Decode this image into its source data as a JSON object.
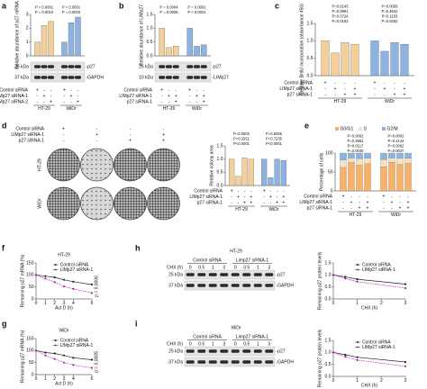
{
  "panels": [
    {
      "label": "a",
      "chart": {
        "type": "bar",
        "y_label": "Relative abundance of p27 mRNA",
        "ylim": [
          0,
          3
        ],
        "yticks": [
          0,
          1,
          2,
          3
        ],
        "groups": [
          {
            "name": "HT-29",
            "color": "#f5cf9a",
            "values": [
              1,
              2.2,
              2.5
            ]
          },
          {
            "name": "WiDr",
            "color": "#8db3e2",
            "values": [
              1,
              2.4,
              2.8
            ]
          }
        ],
        "p_values": [
          "P = 0.0010",
          "P = 0.0001",
          "P = 0.0003",
          "P < 0.0001"
        ]
      },
      "blot": {
        "markers": [
          "25 kDa",
          "37 kDa"
        ],
        "bands": [
          "-p27",
          "-GAPDH"
        ]
      },
      "table": {
        "rows": [
          {
            "label": "Control siRNA",
            "signs": [
              "+",
              "-",
              "-",
              "+",
              "-",
              "-"
            ]
          },
          {
            "label": "LIMp27 siRNA-1",
            "signs": [
              "-",
              "+",
              "-",
              "-",
              "+",
              "-"
            ]
          },
          {
            "label": "LIMp27 siRNA-2",
            "signs": [
              "-",
              "-",
              "+",
              "-",
              "-",
              "+"
            ]
          }
        ]
      }
    },
    {
      "label": "b",
      "chart": {
        "type": "bar",
        "y_label": "Relative abundance of LIMp27",
        "ylim": [
          0,
          1.5
        ],
        "yticks": [
          {
            "value": 0,
            "label": "0.0"
          },
          {
            "value": 0.5,
            "label": "0.5"
          },
          {
            "value": 1,
            "label": "1.0"
          },
          {
            "value": 1.5,
            "label": "1.5"
          }
        ],
        "groups": [
          {
            "name": "HT-29",
            "color": "#f5cf9a",
            "values": [
              1,
              0.3,
              0.35
            ]
          },
          {
            "name": "WiDr",
            "color": "#8db3e2",
            "values": [
              1,
              0.35,
              0.4
            ]
          }
        ],
        "p_values": [
          "P = 0.0005",
          "P = 0.0004",
          "P < 0.0001",
          "P = 0.0002"
        ]
      },
      "blot": {
        "markers": [
          "25 kDa",
          "10 kDa"
        ],
        "bands": [
          "-p27",
          "-LIMp27"
        ]
      },
      "table": {
        "rows": [
          {
            "label": "Control siRNA",
            "signs": [
              "+",
              "-",
              "-",
              "+",
              "-",
              "-"
            ]
          },
          {
            "label": "LIMp27 siRNA-1",
            "signs": [
              "-",
              "+",
              "+",
              "-",
              "+",
              "+"
            ]
          },
          {
            "label": "p27 siRNA-1",
            "signs": [
              "-",
              "-",
              "+",
              "-",
              "-",
              "+"
            ]
          }
        ]
      }
    },
    {
      "label": "c",
      "chart": {
        "type": "bar",
        "y_label": "Relative BrdU incorporation (absorbance 450)",
        "ylim": [
          0,
          1.5
        ],
        "yticks": [
          {
            "value": 0,
            "label": "0.0"
          },
          {
            "value": 0.5,
            "label": "0.5"
          },
          {
            "value": 1,
            "label": "1.0"
          },
          {
            "value": 1.5,
            "label": "1.5"
          }
        ],
        "groups": [
          {
            "name": "HT-29",
            "color": "#f5cf9a",
            "values": [
              1,
              0.65,
              0.95,
              0.9
            ]
          },
          {
            "name": "WiDr",
            "color": "#8db3e2",
            "values": [
              1,
              0.7,
              0.95,
              0.9
            ]
          }
        ],
        "p_values": [
          "P=0.0193",
          "P=0.0724",
          "P=0.0991",
          "P=0.0143",
          "P=0.0252",
          "P=0.1103",
          "P=0.4642",
          "P=0.0059"
        ]
      },
      "table": {
        "rows": [
          {
            "label": "Control siRNA",
            "signs": [
              "+",
              "-",
              "-",
              "-",
              "+",
              "-",
              "-",
              "-"
            ]
          },
          {
            "label": "LIMp27 siRNA-1",
            "signs": [
              "-",
              "+",
              "-",
              "+",
              "-",
              "+",
              "-",
              "+"
            ]
          },
          {
            "label": "p27 siRNA-1",
            "signs": [
              "-",
              "-",
              "+",
              "+",
              "-",
              "-",
              "+",
              "+"
            ]
          }
        ]
      }
    },
    {
      "label": "d",
      "dishes": {
        "rows": [
          "HT-29",
          "WiDr"
        ],
        "table": [
          {
            "label": "Control siRNA",
            "signs": [
              "+",
              "-",
              "-",
              "-"
            ]
          },
          {
            "label": "LIMp27 siRNA-1",
            "signs": [
              "-",
              "+",
              "-",
              "+"
            ]
          },
          {
            "label": "p27 siRNA-1",
            "signs": [
              "-",
              "-",
              "+",
              "+"
            ]
          }
        ]
      },
      "chart": {
        "type": "bar",
        "y_label": "Relative colony area",
        "ylim": [
          0,
          1.5
        ],
        "yticks": [
          {
            "value": 0,
            "label": "0.0"
          },
          {
            "value": 0.5,
            "label": "0.5"
          },
          {
            "value": 1,
            "label": "1.0"
          },
          {
            "value": 1.5,
            "label": "1.5"
          }
        ],
        "groups": [
          {
            "name": "HT-29",
            "color": "#f5cf9a",
            "values": [
              1,
              0.35,
              1.05,
              1
            ]
          },
          {
            "name": "WiDr",
            "color": "#8db3e2",
            "values": [
              1,
              0.3,
              1,
              0.95
            ]
          }
        ],
        "p_values": [
          "P<0.0001",
          "P=0.3251",
          "P=0.0502",
          "P<0.0001",
          "P=0.7235",
          "P=0.8266"
        ]
      },
      "table": {
        "rows": [
          {
            "label": "Control siRNA",
            "signs": [
              "+",
              "-",
              "-",
              "-",
              "+",
              "-",
              "-",
              "-"
            ]
          },
          {
            "label": "LIMp27 siRNA-1",
            "signs": [
              "-",
              "+",
              "-",
              "+",
              "-",
              "+",
              "-",
              "+"
            ]
          },
          {
            "label": "p27 siRNA-1",
            "signs": [
              "-",
              "-",
              "+",
              "+",
              "-",
              "-",
              "+",
              "+"
            ]
          }
        ]
      }
    },
    {
      "label": "e",
      "chart": {
        "type": "stacked_bar",
        "y_label": "Percentage of cells",
        "ylim": [
          0,
          100
        ],
        "yticks": [
          0,
          50,
          100
        ],
        "groups": [
          "HT-29",
          "WiDr"
        ],
        "series": [
          {
            "name": "G0/G1",
            "color": "#f6b26b",
            "values": [
              62,
              75,
              68,
              72,
              64,
              76,
              70,
              73
            ]
          },
          {
            "name": "S",
            "color": "#f3e3c0",
            "values": [
              20,
              12,
              17,
              14,
              19,
              11,
              16,
              13
            ]
          },
          {
            "name": "G2/M",
            "color": "#8db3e2",
            "values": [
              18,
              13,
              15,
              14,
              17,
              13,
              14,
              14
            ]
          }
        ],
        "p_values": [
          "P=0.0030",
          "P=0.0117",
          "P=0.3961",
          "P=0.0002",
          "P=0.0037",
          "P=0.0062",
          "P=0.4144",
          "P=0.0002"
        ]
      },
      "table": {
        "rows": [
          {
            "label": "Control siRNA",
            "signs": [
              "+",
              "-",
              "-",
              "-",
              "+",
              "-",
              "-",
              "-"
            ]
          },
          {
            "label": "LIMp27 siRNA-1",
            "signs": [
              "-",
              "+",
              "-",
              "+",
              "-",
              "+",
              "-",
              "+"
            ]
          },
          {
            "label": "p27 siRNA-1",
            "signs": [
              "-",
              "-",
              "+",
              "+",
              "-",
              "-",
              "+",
              "+"
            ]
          }
        ]
      }
    },
    {
      "label": "f",
      "chart": {
        "type": "line",
        "title": "HT-29",
        "y_label": "Remaining p27 mRNA (%)",
        "x_label": "Act D (h)",
        "xlim": [
          0,
          6
        ],
        "xticks": [
          0,
          1,
          2,
          3,
          4,
          6
        ],
        "ylim": [
          0,
          150
        ],
        "yticks": [
          0,
          50,
          100,
          150
        ],
        "x": [
          0,
          1,
          2,
          3,
          4,
          6
        ],
        "series": [
          {
            "name": "Control siRNA",
            "color": "#222222",
            "values": [
              100,
              95,
              90,
              80,
              72,
              60
            ]
          },
          {
            "name": "LIMp27 siRNA-1",
            "color": "#b020b0",
            "values": [
              100,
              85,
              70,
              52,
              42,
              25
            ]
          }
        ],
        "annotation": "p = 0.0006"
      }
    },
    {
      "label": "g",
      "chart": {
        "type": "line",
        "title": "WiDr",
        "y_label": "Remaining p27 mRNA (%)",
        "x_label": "Act D (h)",
        "xlim": [
          0,
          6
        ],
        "xticks": [
          0,
          1,
          2,
          3,
          4,
          6
        ],
        "ylim": [
          0,
          150
        ],
        "yticks": [
          0,
          50,
          100,
          150
        ],
        "x": [
          0,
          1,
          2,
          3,
          4,
          6
        ],
        "series": [
          {
            "name": "Control siRNA",
            "color": "#222222",
            "values": [
              100,
              92,
              88,
              80,
              70,
              62
            ]
          },
          {
            "name": "LIMp27 siRNA-1",
            "color": "#b020b0",
            "values": [
              100,
              80,
              65,
              50,
              40,
              28
            ]
          }
        ],
        "annotation": "p = 0.0005"
      }
    },
    {
      "label": "h",
      "title": "HT-29",
      "blot": {
        "treatment": "CHX (h)",
        "groups": [
          {
            "name": "Control siRNA",
            "times": [
              0,
              0.5,
              1,
              3
            ]
          },
          {
            "name": "Limp27 siRNA-1",
            "times": [
              0,
              0.5,
              1,
              3
            ]
          }
        ],
        "markers": [
          "25 kDa",
          "37 kDa"
        ],
        "bands": [
          "-p27",
          "-GAPDH"
        ]
      },
      "chart": {
        "type": "line",
        "y_label": "Remaining p27 protein levels",
        "x_label": "CHX (h)",
        "xlim": [
          0,
          3
        ],
        "xticks": [
          0,
          1,
          2,
          3
        ],
        "ylim": [
          0,
          1.5
        ],
        "yticks": [
          {
            "value": 0,
            "label": "0.0"
          },
          {
            "value": 0.5,
            "label": "0.5"
          },
          {
            "value": 1,
            "label": "1.0"
          },
          {
            "value": 1.5,
            "label": "1.5"
          }
        ],
        "x": [
          0,
          0.5,
          1,
          3
        ],
        "series": [
          {
            "name": "Control siRNA",
            "color": "#222222",
            "values": [
              1,
              0.92,
              0.82,
              0.62
            ]
          },
          {
            "name": "LIMp27 siRNA-1",
            "color": "#b020b0",
            "values": [
              1,
              0.85,
              0.72,
              0.45
            ]
          }
        ]
      }
    },
    {
      "label": "i",
      "title": "WiDr",
      "blot": {
        "treatment": "CHX (h)",
        "groups": [
          {
            "name": "Control siRNA",
            "times": [
              0,
              0.5,
              1,
              3
            ]
          },
          {
            "name": "Limp27 siRNA-1",
            "times": [
              0,
              0.5,
              1,
              3
            ]
          }
        ],
        "markers": [
          "25 kDa",
          "37 kDa"
        ],
        "bands": [
          "-p27",
          "-GAPDH"
        ]
      },
      "chart": {
        "type": "line",
        "y_label": "Remaining p27 protein levels",
        "x_label": "CHX (h)",
        "xlim": [
          0,
          3
        ],
        "xticks": [
          0,
          1,
          2,
          3
        ],
        "ylim": [
          0,
          1.5
        ],
        "yticks": [
          {
            "value": 0,
            "label": "0.0"
          },
          {
            "value": 0.5,
            "label": "0.5"
          },
          {
            "value": 1,
            "label": "1.0"
          },
          {
            "value": 1.5,
            "label": "1.5"
          }
        ],
        "x": [
          0,
          0.5,
          1,
          3
        ],
        "series": [
          {
            "name": "Control siRNA",
            "color": "#222222",
            "values": [
              1,
              0.9,
              0.8,
              0.6
            ]
          },
          {
            "name": "LIMp27 siRNA-1",
            "color": "#b020b0",
            "values": [
              1,
              0.82,
              0.68,
              0.42
            ]
          }
        ]
      }
    }
  ]
}
